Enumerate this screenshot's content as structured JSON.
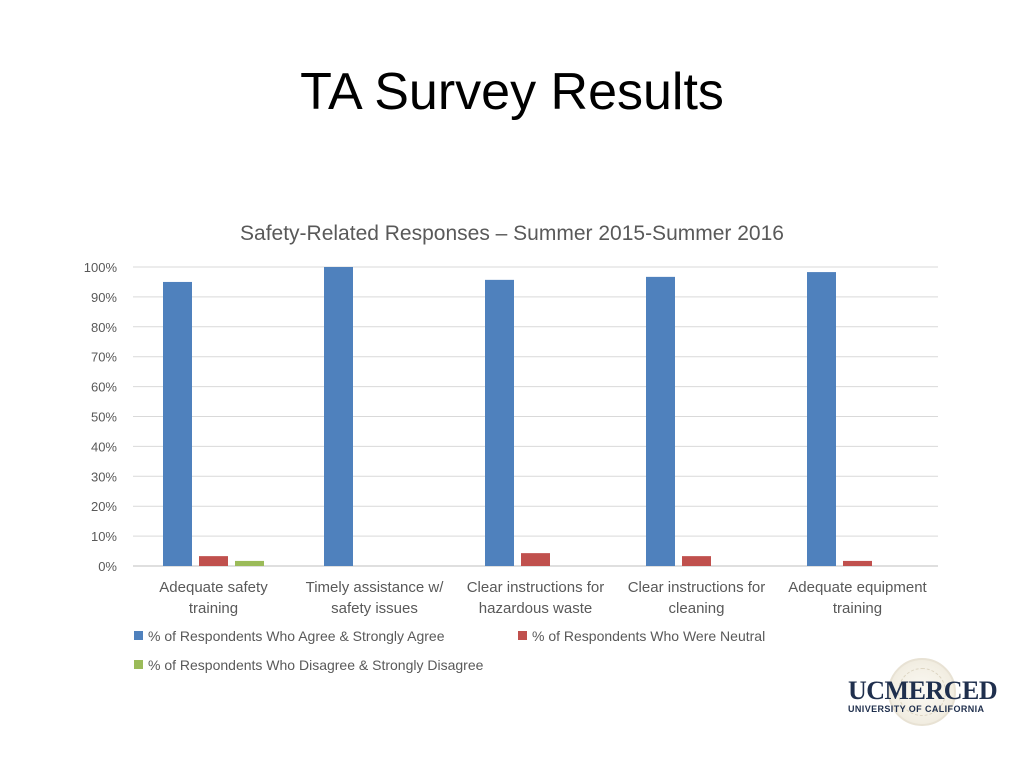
{
  "slide": {
    "title": "TA Survey Results"
  },
  "logo": {
    "main": "UCMERCED",
    "sub": "UNIVERSITY OF CALIFORNIA"
  },
  "chart_data": {
    "type": "bar",
    "title": "Safety-Related Responses – Summer 2015-Summer 2016",
    "xlabel": "",
    "ylabel": "",
    "ylim": [
      0,
      100
    ],
    "yticks": [
      "0%",
      "10%",
      "20%",
      "30%",
      "40%",
      "50%",
      "60%",
      "70%",
      "80%",
      "90%",
      "100%"
    ],
    "grid": true,
    "legend": "bottom",
    "categories": [
      [
        "Adequate safety",
        "training"
      ],
      [
        "Timely assistance w/",
        "safety issues"
      ],
      [
        "Clear instructions for",
        "hazardous waste"
      ],
      [
        "Clear instructions for",
        "cleaning"
      ],
      [
        "Adequate equipment",
        "training"
      ]
    ],
    "series": [
      {
        "name": "% of Respondents Who Agree & Strongly Agree",
        "color": "#4f81bd",
        "values": [
          95,
          100,
          95.7,
          96.7,
          98.3
        ]
      },
      {
        "name": "% of Respondents Who Were Neutral",
        "color": "#c0504d",
        "values": [
          3.3,
          0,
          4.3,
          3.3,
          1.7
        ]
      },
      {
        "name": "% of Respondents Who Disagree & Strongly Disagree",
        "color": "#9bbb59",
        "values": [
          1.7,
          0,
          0,
          0,
          0
        ]
      }
    ]
  }
}
